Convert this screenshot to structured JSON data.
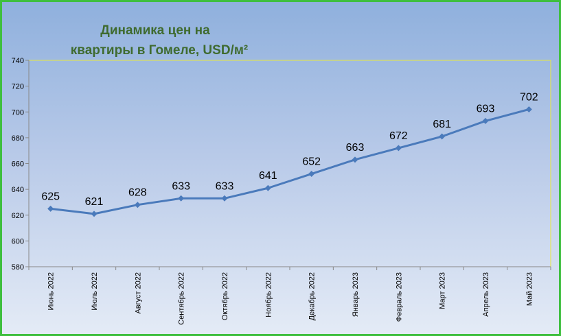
{
  "chart_data": {
    "type": "line",
    "title_line1": "Динамика цен на",
    "title_line2": "квартиры в Гомеле, USD/м²",
    "xlabel": "",
    "ylabel": "",
    "ylim": [
      580,
      740
    ],
    "yticks": [
      580,
      600,
      620,
      640,
      660,
      680,
      700,
      720,
      740
    ],
    "categories": [
      "Июнь 2022",
      "Июль 2022",
      "Август 2022",
      "Сентябрь 2022",
      "Октябрь 2022",
      "Ноябрь 2022",
      "Декабрь 2022",
      "Январь 2023",
      "Февраль 2023",
      "Март 2023",
      "Апрель 2023",
      "Май 2023"
    ],
    "series": [
      {
        "values": [
          625,
          621,
          628,
          633,
          633,
          641,
          652,
          663,
          672,
          681,
          693,
          702
        ]
      }
    ],
    "colors": {
      "line": "#4a7abb",
      "plot_border": "#e8e840"
    },
    "grid": false,
    "legend": "none"
  }
}
